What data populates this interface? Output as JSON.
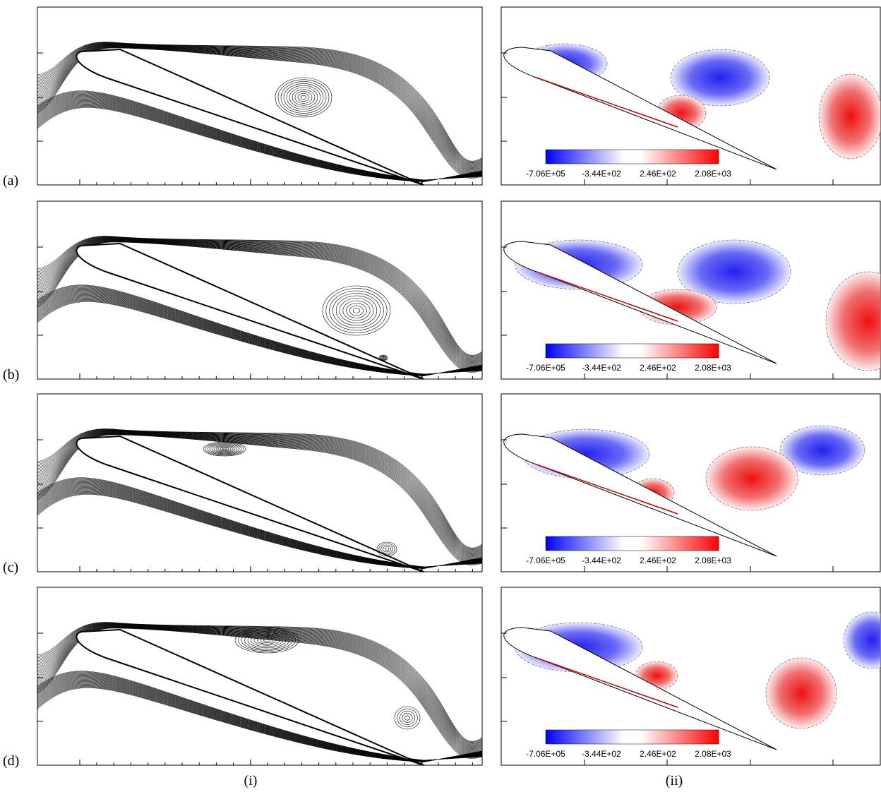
{
  "rows": [
    {
      "label": "(a)",
      "colorbar_ticks": [
        "-7.06E+05",
        "-3.44E+02",
        "2.46E+02",
        "2.08E+03"
      ]
    },
    {
      "label": "(b)",
      "colorbar_ticks": [
        "-7.06E+05",
        "-3.44E+02",
        "2.46E+02",
        "2.08E+03"
      ]
    },
    {
      "label": "(c)",
      "colorbar_ticks": [
        "-7.06E+05",
        "-3.44E+02",
        "2.46E+02",
        "2.08E+03"
      ]
    },
    {
      "label": "(d)",
      "colorbar_ticks": [
        "-7.06E+05",
        "-3.44E+02",
        "2.46E+02",
        "2.08E+03"
      ]
    }
  ],
  "columns": [
    "(i)",
    "(ii)"
  ]
}
